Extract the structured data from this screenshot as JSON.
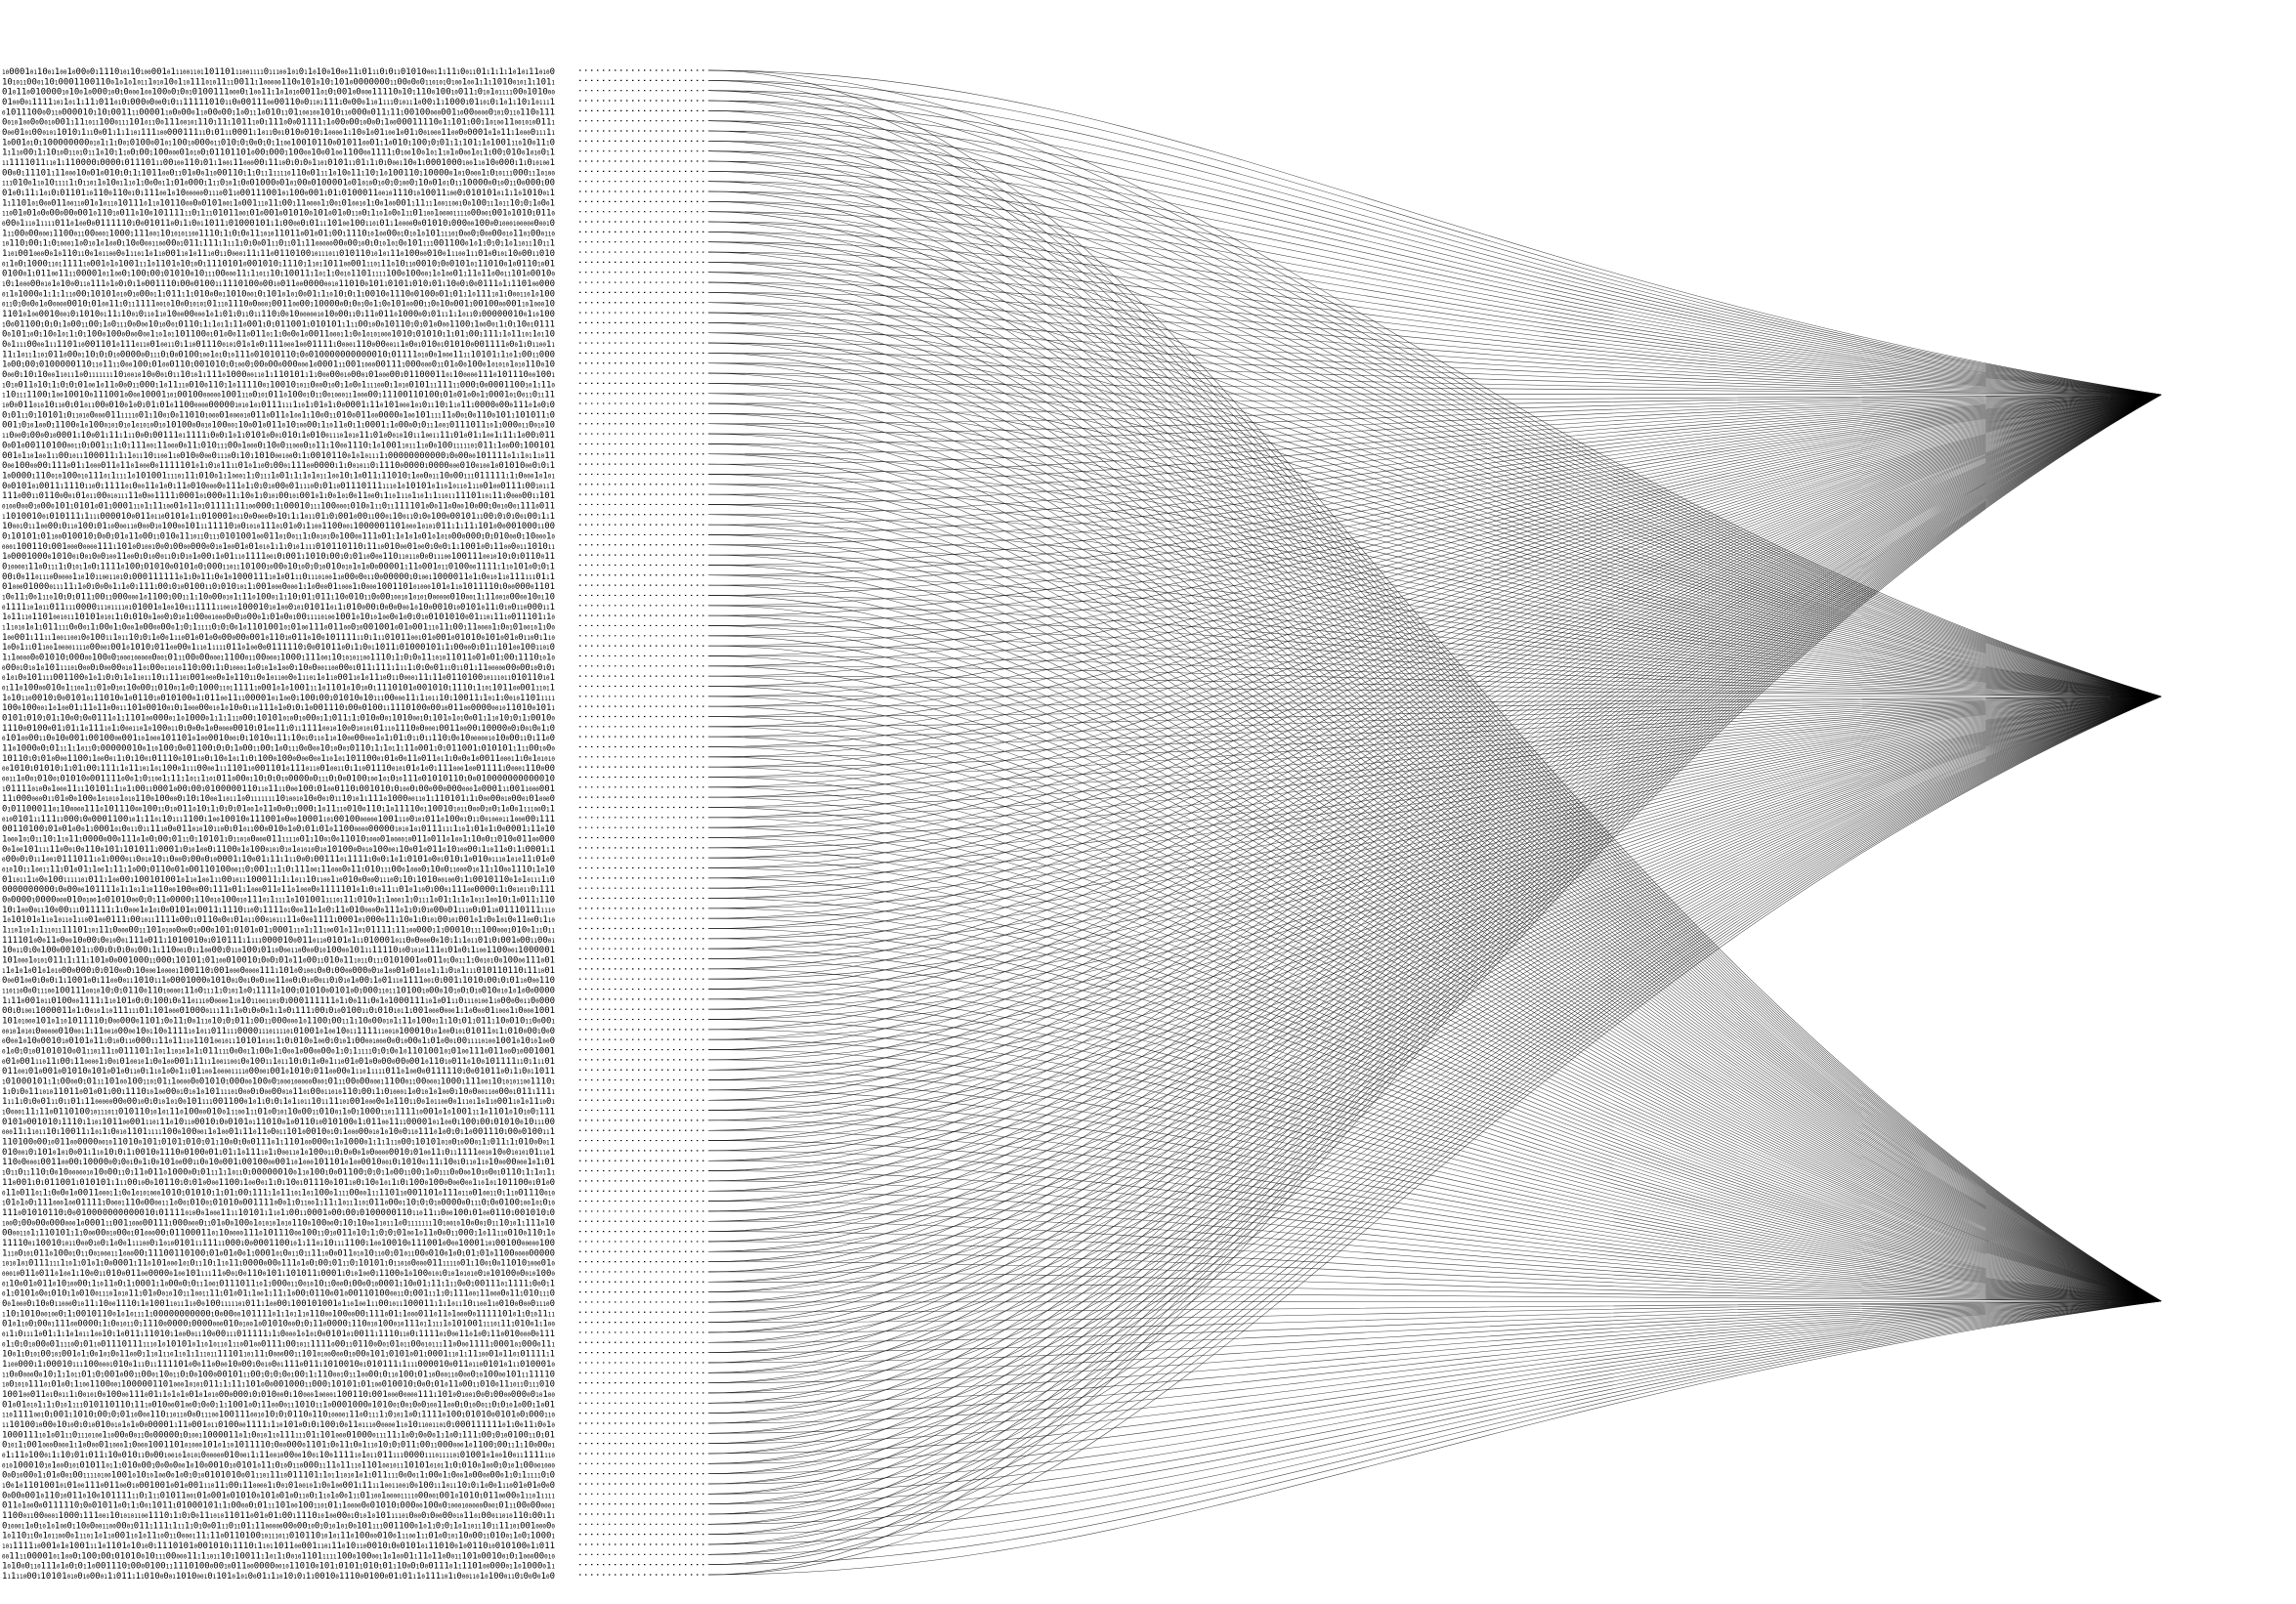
{
  "artwork": {
    "background_color": "#ffffff",
    "ink_color": "#000000",
    "binary_text": {
      "alphabet": [
        "0",
        "1"
      ],
      "row_count": 150,
      "note_style": "dense random binary digits in rows, mixed font sizes"
    },
    "dotted_leaders": {
      "row_count": 150
    },
    "curve_fan": {
      "source_line_count": 150,
      "convergence_point_count": 3,
      "stroke_style": "thin black hairlines"
    }
  }
}
